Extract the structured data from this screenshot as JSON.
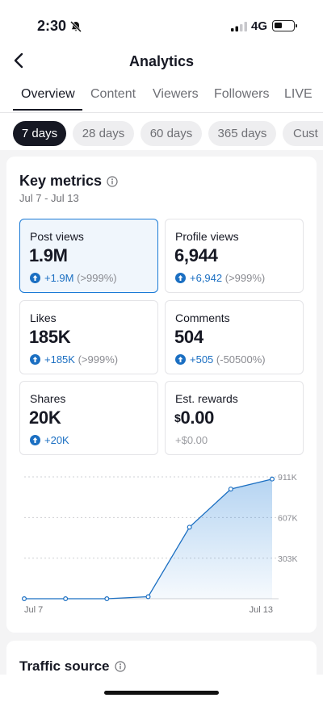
{
  "status_bar": {
    "time": "2:30",
    "network": "4G",
    "icons": [
      "bell-slash-icon",
      "signal-icon",
      "battery-icon"
    ]
  },
  "header": {
    "title": "Analytics",
    "back_icon": "chevron-left-icon"
  },
  "tabs": [
    {
      "label": "Overview",
      "active": true
    },
    {
      "label": "Content"
    },
    {
      "label": "Viewers"
    },
    {
      "label": "Followers"
    },
    {
      "label": "LIVE"
    }
  ],
  "date_filters": [
    {
      "label": "7 days",
      "active": true
    },
    {
      "label": "28 days"
    },
    {
      "label": "60 days"
    },
    {
      "label": "365 days"
    },
    {
      "label": "Cust"
    }
  ],
  "key_metrics": {
    "title": "Key metrics",
    "date_range": "Jul 7 - Jul 13",
    "items": [
      {
        "label": "Post views",
        "value": "1.9M",
        "change": "+1.9M",
        "pct": "(>999%)",
        "selected": true
      },
      {
        "label": "Profile views",
        "value": "6,944",
        "change": "+6,942",
        "pct": "(>999%)"
      },
      {
        "label": "Likes",
        "value": "185K",
        "change": "+185K",
        "pct": "(>999%)"
      },
      {
        "label": "Comments",
        "value": "504",
        "change": "+505",
        "pct": "(-50500%)"
      },
      {
        "label": "Shares",
        "value": "20K",
        "change": "+20K",
        "pct": ""
      },
      {
        "label": "Est. rewards",
        "currency": "$",
        "value": "0.00",
        "change": "+$0.00",
        "pct": ""
      }
    ]
  },
  "chart_data": {
    "type": "area",
    "series": [
      {
        "values": [
          0,
          0,
          0,
          15000,
          535000,
          820000,
          895000
        ]
      }
    ],
    "x_start_label": "Jul 7",
    "x_end_label": "Jul 13",
    "y_ticks": [
      {
        "value": 303000,
        "label": "303K"
      },
      {
        "value": 607000,
        "label": "607K"
      },
      {
        "value": 911000,
        "label": "911K"
      }
    ],
    "ylim": [
      0,
      911000
    ],
    "grid": true,
    "color": "#1a7ad6"
  },
  "traffic_source": {
    "title": "Traffic source"
  }
}
